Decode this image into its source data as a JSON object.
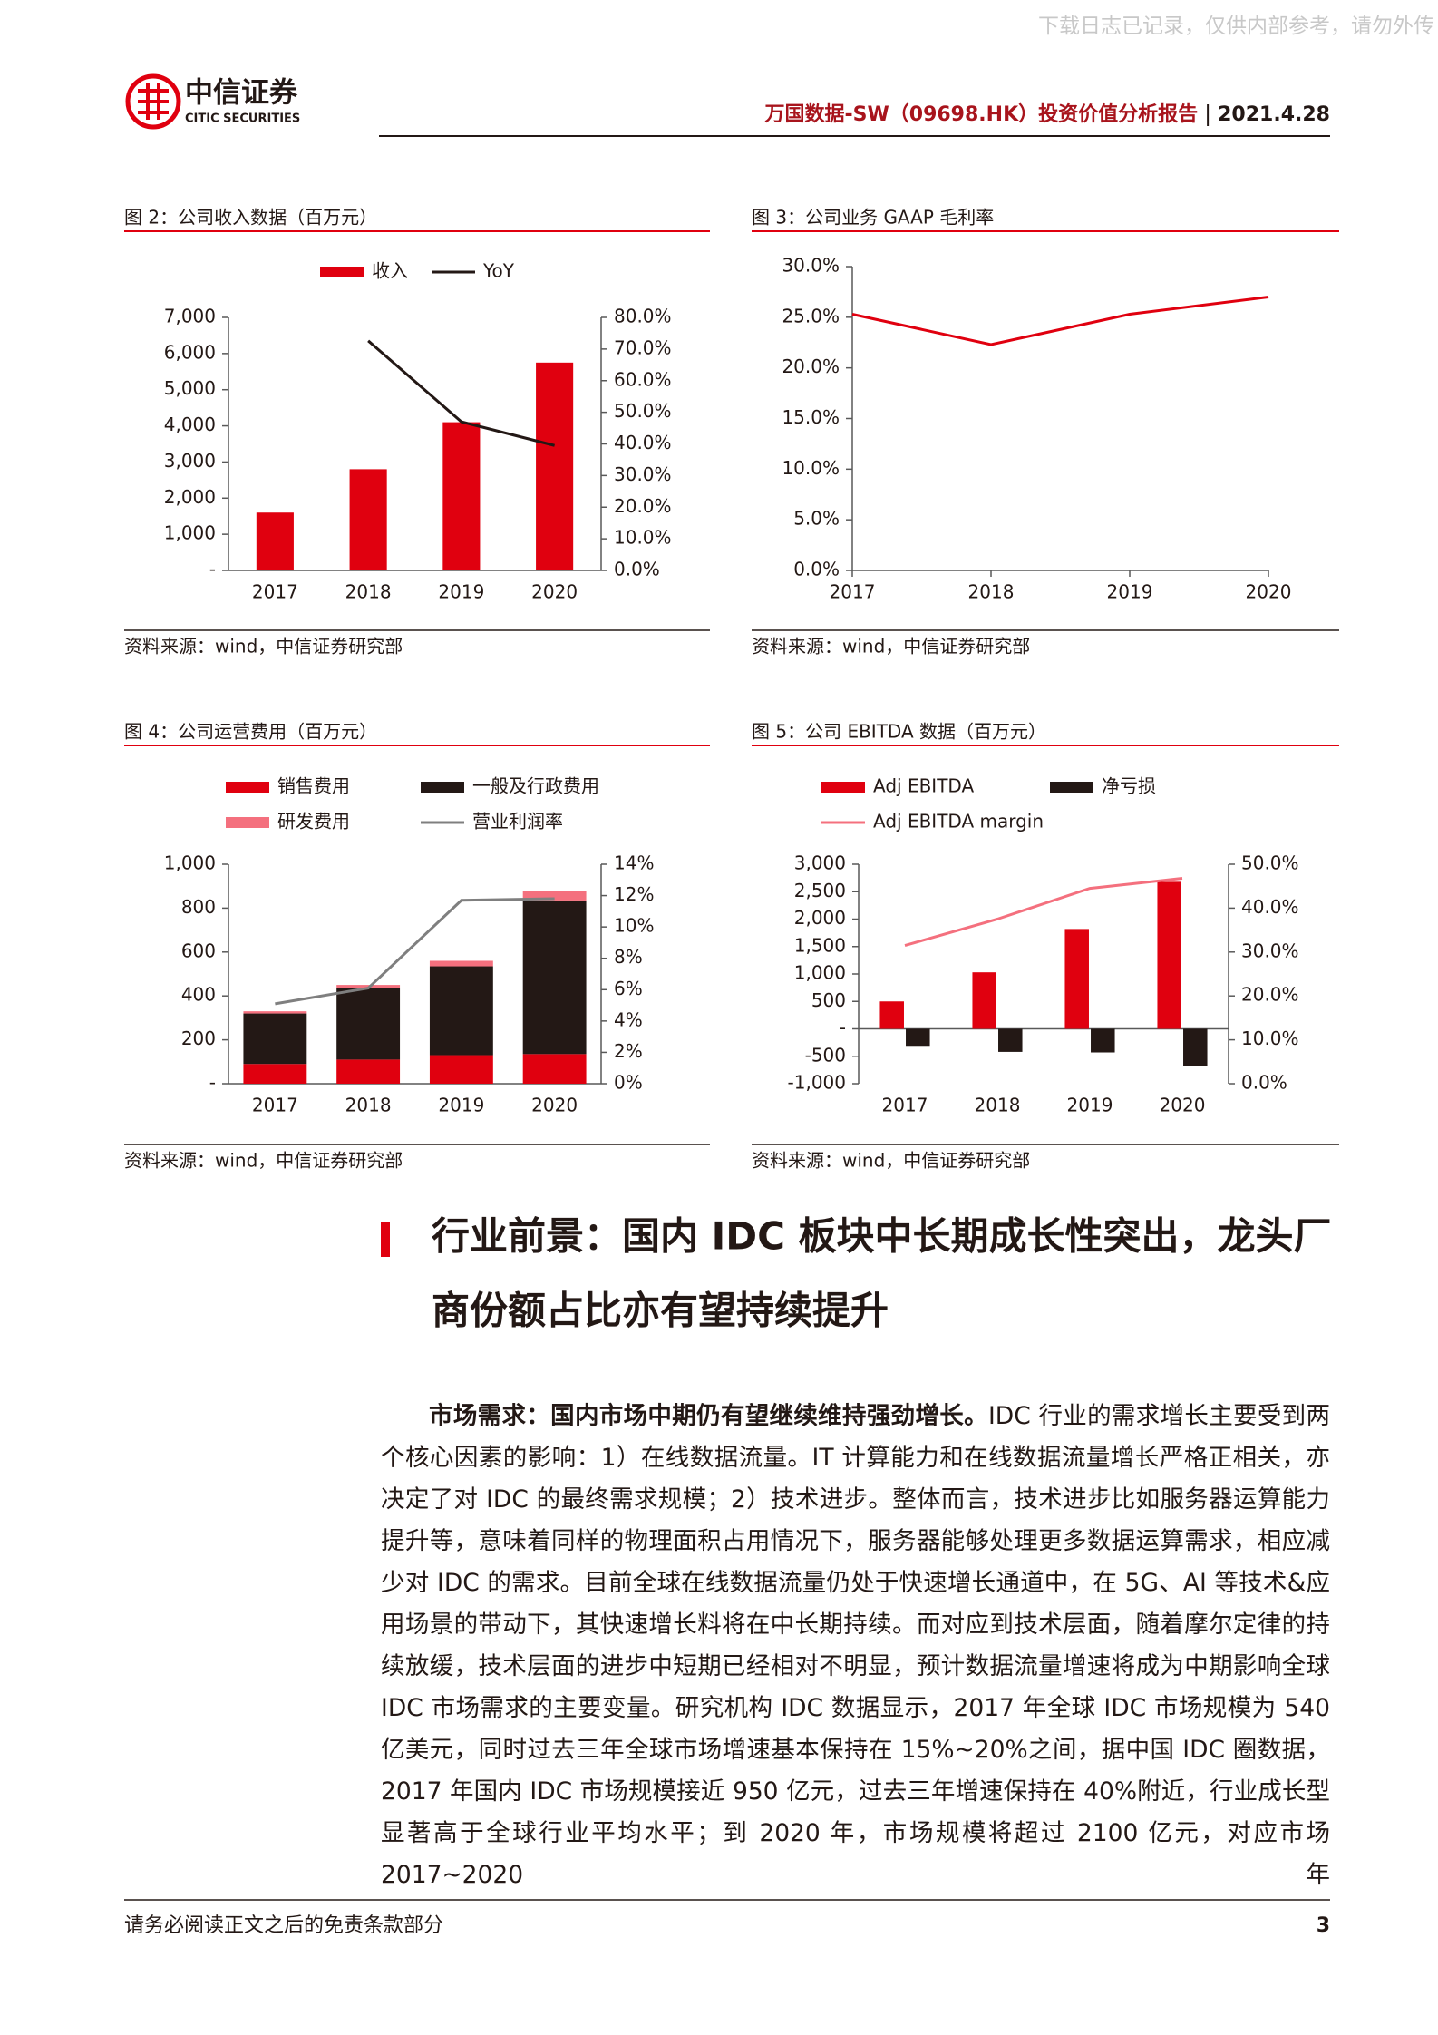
{
  "watermark": "下载日志已记录，仅供内部参考，请勿外传",
  "header": {
    "logo_cn": "中信证券",
    "logo_en": "CITIC SECURITIES",
    "report_title": "万国数据-SW（09698.HK）投资价值分析报告",
    "date": "2021.4.28"
  },
  "chart_data": [
    {
      "type": "bar",
      "title": "图 2：公司收入数据（百万元）",
      "source": "资料来源：wind，中信证券研究部",
      "categories": [
        "2017",
        "2018",
        "2019",
        "2020"
      ],
      "series": [
        {
          "name": "收入",
          "type": "bar",
          "color": "#e0000f",
          "values": [
            1600,
            2800,
            4100,
            5750
          ]
        },
        {
          "name": "YoY",
          "type": "line",
          "axis": "y2",
          "color": "#231815",
          "values": [
            null,
            72.6,
            47.0,
            39.5
          ]
        }
      ],
      "ylim": [
        0,
        7000
      ],
      "yticks": [
        {
          "value": 0,
          "label": "-"
        },
        {
          "value": 1000,
          "label": "1,000"
        },
        {
          "value": 2000,
          "label": "2,000"
        },
        {
          "value": 3000,
          "label": "3,000"
        },
        {
          "value": 4000,
          "label": "4,000"
        },
        {
          "value": 5000,
          "label": "5,000"
        },
        {
          "value": 6000,
          "label": "6,000"
        },
        {
          "value": 7000,
          "label": "7,000"
        }
      ],
      "y2lim": [
        0,
        80
      ],
      "y2ticks": [
        {
          "value": 0,
          "label": "0.0%"
        },
        {
          "value": 10,
          "label": "10.0%"
        },
        {
          "value": 20,
          "label": "20.0%"
        },
        {
          "value": 30,
          "label": "30.0%"
        },
        {
          "value": 40,
          "label": "40.0%"
        },
        {
          "value": 50,
          "label": "50.0%"
        },
        {
          "value": 60,
          "label": "60.0%"
        },
        {
          "value": 70,
          "label": "70.0%"
        },
        {
          "value": 80,
          "label": "80.0%"
        }
      ]
    },
    {
      "type": "line",
      "title": "图 3：公司业务 GAAP 毛利率",
      "source": "资料来源：wind，中信证券研究部",
      "categories": [
        "2017",
        "2018",
        "2019",
        "2020"
      ],
      "series": [
        {
          "type": "line",
          "color": "#e0000f",
          "values": [
            25.3,
            22.3,
            25.3,
            27.0
          ]
        }
      ],
      "ylim": [
        0,
        30
      ],
      "yticks": [
        {
          "value": 0,
          "label": "0.0%"
        },
        {
          "value": 5,
          "label": "5.0%"
        },
        {
          "value": 10,
          "label": "10.0%"
        },
        {
          "value": 15,
          "label": "15.0%"
        },
        {
          "value": 20,
          "label": "20.0%"
        },
        {
          "value": 25,
          "label": "25.0%"
        },
        {
          "value": 30,
          "label": "30.0%"
        }
      ]
    },
    {
      "type": "bar",
      "stacked": true,
      "title": "图 4：公司运营费用（百万元）",
      "source": "资料来源：wind，中信证券研究部",
      "categories": [
        "2017",
        "2018",
        "2019",
        "2020"
      ],
      "series": [
        {
          "name": "销售费用",
          "type": "bar",
          "color": "#e0000f",
          "values": [
            90,
            110,
            130,
            135
          ]
        },
        {
          "name": "一般及行政费用",
          "type": "bar",
          "color": "#231815",
          "values": [
            230,
            325,
            405,
            700
          ]
        },
        {
          "name": "研发费用",
          "type": "bar",
          "color": "#f4707e",
          "values": [
            10,
            15,
            25,
            45
          ]
        },
        {
          "name": "营业利润率",
          "type": "line",
          "axis": "y2",
          "color": "#7f7f7f",
          "values": [
            5.1,
            6.1,
            11.7,
            11.8
          ]
        }
      ],
      "ylim": [
        0,
        1000
      ],
      "yticks": [
        {
          "value": 0,
          "label": "-"
        },
        200,
        400,
        600,
        800,
        {
          "value": 1000,
          "label": "1,000"
        }
      ],
      "y2lim": [
        0,
        14
      ],
      "y2ticks": [
        {
          "value": 0,
          "label": "0%"
        },
        {
          "value": 2,
          "label": "2%"
        },
        {
          "value": 4,
          "label": "4%"
        },
        {
          "value": 6,
          "label": "6%"
        },
        {
          "value": 8,
          "label": "8%"
        },
        {
          "value": 10,
          "label": "10%"
        },
        {
          "value": 12,
          "label": "12%"
        },
        {
          "value": 14,
          "label": "14%"
        }
      ]
    },
    {
      "type": "bar",
      "title": "图 5：公司 EBITDA 数据（百万元）",
      "source": "资料来源：wind，中信证券研究部",
      "categories": [
        "2017",
        "2018",
        "2019",
        "2020"
      ],
      "series": [
        {
          "name": "Adj EBITDA",
          "type": "bar",
          "color": "#e0000f",
          "values": [
            500,
            1030,
            1820,
            2680
          ]
        },
        {
          "name": "净亏损",
          "type": "bar",
          "color": "#231815",
          "values": [
            -310,
            -420,
            -430,
            -680
          ]
        },
        {
          "name": "Adj EBITDA margin",
          "type": "line",
          "axis": "y2",
          "color": "#f4707e",
          "values": [
            31.5,
            37.5,
            44.5,
            46.8
          ]
        }
      ],
      "ylim": [
        -1000,
        3000
      ],
      "yticks": [
        {
          "value": -1000,
          "label": "-1,000"
        },
        -500,
        {
          "value": 0,
          "label": "-"
        },
        500,
        {
          "value": 1000,
          "label": "1,000"
        },
        {
          "value": 1500,
          "label": "1,500"
        },
        {
          "value": 2000,
          "label": "2,000"
        },
        {
          "value": 2500,
          "label": "2,500"
        },
        {
          "value": 3000,
          "label": "3,000"
        }
      ],
      "y2lim": [
        0,
        50
      ],
      "y2ticks": [
        {
          "value": 0,
          "label": "0.0%"
        },
        {
          "value": 10,
          "label": "10.0%"
        },
        {
          "value": 20,
          "label": "20.0%"
        },
        {
          "value": 30,
          "label": "30.0%"
        },
        {
          "value": 40,
          "label": "40.0%"
        },
        {
          "value": 50,
          "label": "50.0%"
        }
      ]
    }
  ],
  "section": {
    "heading": [
      "行业前景：国内 IDC 板块中长期成长性突出，龙头厂",
      "商份额占比亦有望持续提升"
    ]
  },
  "paragraph": {
    "lead": "市场需求：国内市场中期仍有望继续维持强劲增长。",
    "body": "IDC 行业的需求增长主要受到两个核心因素的影响：1）在线数据流量。IT 计算能力和在线数据流量增长严格正相关，亦决定了对 IDC 的最终需求规模；2）技术进步。整体而言，技术进步比如服务器运算能力提升等，意味着同样的物理面积占用情况下，服务器能够处理更多数据运算需求，相应减少对 IDC 的需求。目前全球在线数据流量仍处于快速增长通道中，在 5G、AI 等技术&应用场景的带动下，其快速增长料将在中长期持续。而对应到技术层面，随着摩尔定律的持续放缓，技术层面的进步中短期已经相对不明显，预计数据流量增速将成为中期影响全球 IDC 市场需求的主要变量。研究机构 IDC 数据显示，2017 年全球 IDC 市场规模为 540 亿美元，同时过去三年全球市场增速基本保持在 15%~20%之间，据中国 IDC 圈数据，2017 年国内 IDC 市场规模接近 950 亿元，过去三年增速保持在 40%附近，行业成长型显著高于全球行业平均水平；到 2020 年，市场规模将超过 2100 亿元，对应市场 2017~2020 年"
  },
  "footer": {
    "disclaimer": "请务必阅读正文之后的免责条款部分",
    "page": 3
  }
}
